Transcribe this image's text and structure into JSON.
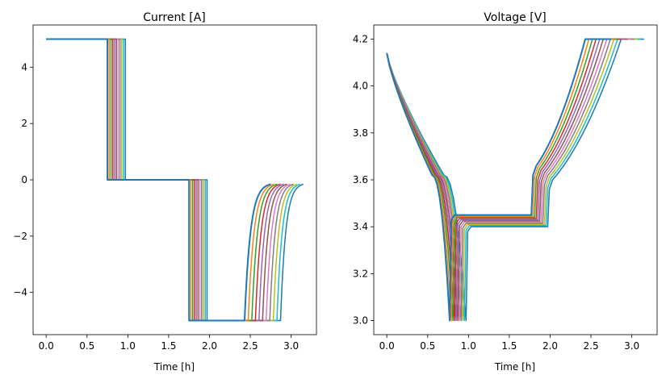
{
  "chart_data": [
    {
      "type": "line",
      "title": "Current [A]",
      "xlabel": "Time [h]",
      "ylabel": "",
      "xlim": [
        -0.16,
        3.31
      ],
      "ylim": [
        -5.5,
        5.5
      ],
      "xticks": [
        0.0,
        0.5,
        1.0,
        1.5,
        2.0,
        2.5,
        3.0
      ],
      "xtick_labels": [
        "0.0",
        "0.5",
        "1.0",
        "1.5",
        "2.0",
        "2.5",
        "3.0"
      ],
      "yticks": [
        -4,
        -2,
        0,
        2,
        4
      ],
      "ytick_labels": [
        "−4",
        "−2",
        "0",
        "2",
        "4"
      ],
      "grid": false,
      "legend": "none",
      "series_count": 11,
      "series_colors": [
        "#1f77b4",
        "#ff7f0e",
        "#2ca02c",
        "#d62728",
        "#9467bd",
        "#8c564b",
        "#e377c2",
        "#7f7f7f",
        "#bcbd22",
        "#17becf",
        "#1f77b4"
      ],
      "profile": {
        "discharge_current": 5.0,
        "rest_current": 0.0,
        "charge_current": -5.0,
        "cv_end_current": -0.1,
        "discharge_end_time_range": [
          0.75,
          0.97
        ],
        "rest_end_time_range": [
          1.75,
          1.97
        ],
        "cc_charge_end_time_range": [
          2.43,
          2.87
        ],
        "end_time_range": [
          2.75,
          3.15
        ]
      }
    },
    {
      "type": "line",
      "title": "Voltage [V]",
      "xlabel": "Time [h]",
      "ylabel": "",
      "xlim": [
        -0.16,
        3.31
      ],
      "ylim": [
        2.94,
        4.26
      ],
      "xticks": [
        0.0,
        0.5,
        1.0,
        1.5,
        2.0,
        2.5,
        3.0
      ],
      "xtick_labels": [
        "0.0",
        "0.5",
        "1.0",
        "1.5",
        "2.0",
        "2.5",
        "3.0"
      ],
      "yticks": [
        3.0,
        3.2,
        3.4,
        3.6,
        3.8,
        4.0,
        4.2
      ],
      "ytick_labels": [
        "3.0",
        "3.2",
        "3.4",
        "3.6",
        "3.8",
        "4.0",
        "4.2"
      ],
      "grid": false,
      "legend": "none",
      "series_count": 11,
      "series_colors": [
        "#1f77b4",
        "#ff7f0e",
        "#2ca02c",
        "#d62728",
        "#9467bd",
        "#8c564b",
        "#e377c2",
        "#7f7f7f",
        "#bcbd22",
        "#17becf",
        "#1f77b4"
      ],
      "profile": {
        "start_voltage": 4.14,
        "discharge_min_voltage": 3.0,
        "rest_voltage_range": [
          3.4,
          3.45
        ],
        "max_voltage": 4.2,
        "cv_start_time_range": [
          2.43,
          2.87
        ],
        "end_time_range": [
          2.75,
          3.15
        ]
      }
    }
  ]
}
